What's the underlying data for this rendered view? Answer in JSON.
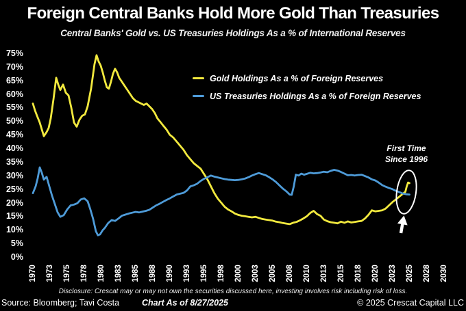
{
  "header": {
    "title": "Foreign Central Banks Hold More Gold Than Treasuries",
    "subtitle": "Central Banks' Gold vs. US Treasuries Holdings As a % of International Reserves"
  },
  "legend": {
    "items": [
      {
        "label": "Gold Holdings As a % of Foreign Reserves",
        "color": "#f2e93e"
      },
      {
        "label": "US Treasuries Holdings As a % of Foreign Reserves",
        "color": "#4e9bd8"
      }
    ]
  },
  "annotation": {
    "line1": "First Time",
    "line2": "Since 1996",
    "color": "#ffffff"
  },
  "footer": {
    "disclosure": "Disclosure: Crescat may or may not own the securities discussed here, investing involves risk including risk of loss.",
    "source": "Source: Bloomberg; Tavi Costa",
    "chart_as_of": "Chart As of 8/27/2025",
    "copyright": "© 2025 Crescat Capital LLC"
  },
  "chart_data": {
    "type": "line",
    "title": "Foreign Central Banks Hold More Gold Than Treasuries",
    "subtitle": "Central Banks' Gold vs. US Treasuries Holdings As a % of International Reserves",
    "xlabel": "",
    "ylabel": "% of International Reserves",
    "ylim": [
      0,
      75
    ],
    "xlim": [
      1969.5,
      2031
    ],
    "grid": false,
    "background": "#000000",
    "legend_position": "top-center",
    "y_tick_labels": [
      "75%",
      "70%",
      "65%",
      "60%",
      "55%",
      "50%",
      "45%",
      "40%",
      "35%",
      "30%",
      "25%",
      "20%",
      "15%",
      "10%",
      "5%",
      "0%"
    ],
    "x_tick_labels": [
      "1970",
      "1973",
      "1975",
      "1978",
      "1980",
      "1983",
      "1985",
      "1988",
      "1990",
      "1993",
      "1995",
      "1998",
      "2000",
      "2003",
      "2005",
      "2008",
      "2010",
      "2013",
      "2015",
      "2018",
      "2020",
      "2023",
      "2025",
      "2028",
      "2030"
    ],
    "highlight": {
      "label": "First Time Since 1996",
      "x": 2024.6,
      "y": 25
    },
    "series": [
      {
        "name": "Gold Holdings As a % of Foreign Reserves",
        "color": "#f2e93e",
        "points": [
          [
            1970,
            56.5
          ],
          [
            1970.3,
            54
          ],
          [
            1970.6,
            52
          ],
          [
            1971,
            49.5
          ],
          [
            1971.3,
            47
          ],
          [
            1971.6,
            44.5
          ],
          [
            1972,
            46
          ],
          [
            1972.3,
            47.5
          ],
          [
            1972.6,
            51
          ],
          [
            1973,
            58
          ],
          [
            1973.4,
            66
          ],
          [
            1973.7,
            63.5
          ],
          [
            1974,
            61.5
          ],
          [
            1974.4,
            63.5
          ],
          [
            1974.8,
            60.5
          ],
          [
            1975.2,
            59.5
          ],
          [
            1975.6,
            55
          ],
          [
            1976,
            49.5
          ],
          [
            1976.4,
            48
          ],
          [
            1976.8,
            50.5
          ],
          [
            1977.2,
            52
          ],
          [
            1977.6,
            52.5
          ],
          [
            1978,
            55.5
          ],
          [
            1978.5,
            62
          ],
          [
            1979,
            71
          ],
          [
            1979.3,
            74.3
          ],
          [
            1979.6,
            72
          ],
          [
            1979.9,
            70.5
          ],
          [
            1980.2,
            68
          ],
          [
            1980.5,
            65
          ],
          [
            1980.8,
            62.5
          ],
          [
            1981.1,
            62
          ],
          [
            1981.4,
            64.5
          ],
          [
            1981.7,
            67.5
          ],
          [
            1982,
            69.3
          ],
          [
            1982.3,
            68
          ],
          [
            1982.6,
            66
          ],
          [
            1983,
            64.5
          ],
          [
            1983.4,
            63
          ],
          [
            1983.8,
            61.5
          ],
          [
            1984.2,
            60
          ],
          [
            1984.6,
            58.5
          ],
          [
            1985,
            57.5
          ],
          [
            1985.4,
            57
          ],
          [
            1985.8,
            56.5
          ],
          [
            1986.2,
            56
          ],
          [
            1986.6,
            56.5
          ],
          [
            1987,
            55.5
          ],
          [
            1987.4,
            54.5
          ],
          [
            1987.8,
            53
          ],
          [
            1988.2,
            51
          ],
          [
            1988.6,
            49.8
          ],
          [
            1989,
            48.5
          ],
          [
            1989.5,
            47
          ],
          [
            1990,
            45
          ],
          [
            1990.5,
            44
          ],
          [
            1991,
            42.5
          ],
          [
            1991.5,
            41
          ],
          [
            1992,
            39.5
          ],
          [
            1992.5,
            37.5
          ],
          [
            1993,
            36
          ],
          [
            1993.5,
            34.5
          ],
          [
            1994,
            33.5
          ],
          [
            1994.5,
            32.5
          ],
          [
            1995,
            30.5
          ],
          [
            1995.5,
            28.5
          ],
          [
            1996,
            26
          ],
          [
            1996.5,
            23.5
          ],
          [
            1997,
            21.5
          ],
          [
            1997.5,
            20
          ],
          [
            1998,
            18.5
          ],
          [
            1998.5,
            17.5
          ],
          [
            1999,
            16.8
          ],
          [
            1999.5,
            16
          ],
          [
            2000,
            15.5
          ],
          [
            2000.5,
            15.2
          ],
          [
            2001,
            15
          ],
          [
            2001.5,
            14.8
          ],
          [
            2002,
            14.6
          ],
          [
            2002.5,
            14.8
          ],
          [
            2003,
            14.4
          ],
          [
            2003.5,
            14
          ],
          [
            2004,
            13.8
          ],
          [
            2004.5,
            13.6
          ],
          [
            2005,
            13.4
          ],
          [
            2005.5,
            13
          ],
          [
            2006,
            12.8
          ],
          [
            2006.5,
            12.5
          ],
          [
            2007,
            12.3
          ],
          [
            2007.5,
            12.1
          ],
          [
            2008,
            12.6
          ],
          [
            2008.5,
            12.9
          ],
          [
            2009,
            13.5
          ],
          [
            2009.5,
            14.2
          ],
          [
            2010,
            15
          ],
          [
            2010.5,
            16.2
          ],
          [
            2011,
            17
          ],
          [
            2011.5,
            15.8
          ],
          [
            2012,
            15.2
          ],
          [
            2012.5,
            13.8
          ],
          [
            2013,
            13.2
          ],
          [
            2013.5,
            12.8
          ],
          [
            2014,
            12.6
          ],
          [
            2014.5,
            12.4
          ],
          [
            2015,
            13
          ],
          [
            2015.5,
            12.6
          ],
          [
            2016,
            13.1
          ],
          [
            2016.5,
            12.7
          ],
          [
            2017,
            12.9
          ],
          [
            2017.5,
            13.1
          ],
          [
            2018,
            13.3
          ],
          [
            2018.5,
            14.2
          ],
          [
            2019,
            15.5
          ],
          [
            2019.5,
            17.2
          ],
          [
            2020,
            16.8
          ],
          [
            2020.5,
            17
          ],
          [
            2021,
            17.2
          ],
          [
            2021.5,
            17.8
          ],
          [
            2022,
            19
          ],
          [
            2022.5,
            20.2
          ],
          [
            2023,
            21.2
          ],
          [
            2023.5,
            22.2
          ],
          [
            2024,
            23.2
          ],
          [
            2024.4,
            24
          ],
          [
            2024.6,
            26
          ],
          [
            2024.8,
            27.4
          ],
          [
            2025,
            27.2
          ]
        ]
      },
      {
        "name": "US Treasuries Holdings As a % of Foreign Reserves",
        "color": "#4e9bd8",
        "points": [
          [
            1970,
            23.5
          ],
          [
            1970.4,
            26
          ],
          [
            1970.7,
            29
          ],
          [
            1971,
            33
          ],
          [
            1971.3,
            31
          ],
          [
            1971.6,
            28.5
          ],
          [
            1972,
            29.5
          ],
          [
            1972.4,
            26
          ],
          [
            1972.8,
            22.5
          ],
          [
            1973.2,
            19.5
          ],
          [
            1973.6,
            16.5
          ],
          [
            1974,
            14.8
          ],
          [
            1974.5,
            15.4
          ],
          [
            1975,
            17.5
          ],
          [
            1975.5,
            19
          ],
          [
            1976,
            19.3
          ],
          [
            1976.5,
            19.8
          ],
          [
            1977,
            21.2
          ],
          [
            1977.5,
            21.6
          ],
          [
            1978,
            20.5
          ],
          [
            1978.4,
            17.5
          ],
          [
            1978.8,
            14
          ],
          [
            1979.2,
            9.5
          ],
          [
            1979.5,
            8
          ],
          [
            1979.8,
            8.3
          ],
          [
            1980.2,
            9.9
          ],
          [
            1980.5,
            10.7
          ],
          [
            1981,
            12.5
          ],
          [
            1981.5,
            13.6
          ],
          [
            1982,
            13.3
          ],
          [
            1982.5,
            14.2
          ],
          [
            1983,
            15.2
          ],
          [
            1983.5,
            15.6
          ],
          [
            1984,
            16
          ],
          [
            1984.5,
            16.3
          ],
          [
            1985,
            16.6
          ],
          [
            1985.5,
            16.4
          ],
          [
            1986,
            16.7
          ],
          [
            1986.5,
            17
          ],
          [
            1987,
            17.4
          ],
          [
            1987.5,
            18.2
          ],
          [
            1988,
            19
          ],
          [
            1988.5,
            19.6
          ],
          [
            1989,
            20.3
          ],
          [
            1989.5,
            21
          ],
          [
            1990,
            21.6
          ],
          [
            1990.5,
            22.3
          ],
          [
            1991,
            23
          ],
          [
            1991.5,
            23.3
          ],
          [
            1992,
            23.6
          ],
          [
            1992.5,
            24.5
          ],
          [
            1993,
            26
          ],
          [
            1993.5,
            26.4
          ],
          [
            1994,
            27
          ],
          [
            1994.5,
            28
          ],
          [
            1995,
            28.8
          ],
          [
            1995.5,
            29.4
          ],
          [
            1996,
            30
          ],
          [
            1996.5,
            29.6
          ],
          [
            1997,
            29.3
          ],
          [
            1997.5,
            29
          ],
          [
            1998,
            28.7
          ],
          [
            1998.5,
            28.5
          ],
          [
            1999,
            28.4
          ],
          [
            1999.5,
            28.3
          ],
          [
            2000,
            28.4
          ],
          [
            2000.5,
            28.6
          ],
          [
            2001,
            28.9
          ],
          [
            2001.5,
            29.4
          ],
          [
            2002,
            30
          ],
          [
            2002.5,
            30.5
          ],
          [
            2003,
            30.9
          ],
          [
            2003.5,
            30.5
          ],
          [
            2004,
            30.1
          ],
          [
            2004.5,
            29.4
          ],
          [
            2005,
            28.6
          ],
          [
            2005.5,
            27.6
          ],
          [
            2006,
            26.4
          ],
          [
            2006.5,
            25.2
          ],
          [
            2007,
            24.2
          ],
          [
            2007.5,
            23
          ],
          [
            2007.8,
            22.9
          ],
          [
            2008.1,
            26
          ],
          [
            2008.4,
            30.3
          ],
          [
            2008.8,
            30
          ],
          [
            2009.2,
            30.7
          ],
          [
            2009.6,
            30.3
          ],
          [
            2010,
            30.6
          ],
          [
            2010.5,
            31
          ],
          [
            2011,
            30.8
          ],
          [
            2011.5,
            30.9
          ],
          [
            2012,
            31.1
          ],
          [
            2012.5,
            31.4
          ],
          [
            2013,
            31.2
          ],
          [
            2013.5,
            31.7
          ],
          [
            2014,
            32.1
          ],
          [
            2014.5,
            31.8
          ],
          [
            2015,
            31.3
          ],
          [
            2015.5,
            30.7
          ],
          [
            2016,
            30.1
          ],
          [
            2016.5,
            30.2
          ],
          [
            2017,
            30
          ],
          [
            2017.5,
            30.2
          ],
          [
            2018,
            30.3
          ],
          [
            2018.5,
            29.8
          ],
          [
            2019,
            29.3
          ],
          [
            2019.5,
            28.6
          ],
          [
            2020,
            28.2
          ],
          [
            2020.5,
            27.4
          ],
          [
            2021,
            26.5
          ],
          [
            2021.5,
            25.9
          ],
          [
            2022,
            25.4
          ],
          [
            2022.5,
            25
          ],
          [
            2023,
            24.4
          ],
          [
            2023.5,
            23.9
          ],
          [
            2024,
            23.4
          ],
          [
            2024.5,
            23.1
          ],
          [
            2025,
            23
          ]
        ]
      }
    ]
  }
}
